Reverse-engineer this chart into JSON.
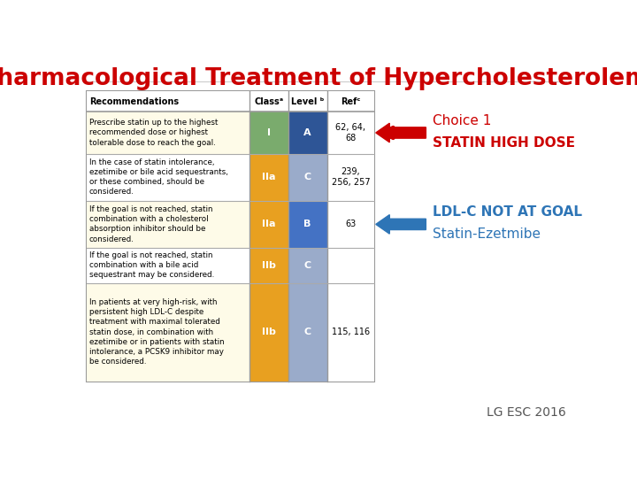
{
  "title": "Pharmacological Treatment of Hypercholesterolemia",
  "title_color": "#cc0000",
  "title_fontsize": 19,
  "bg_color": "#ffffff",
  "col_headers": [
    "Recommendations",
    "Classᵃ",
    "Level ᵇ",
    "Refᶜ"
  ],
  "row_data": [
    {
      "text": "Prescribe statin up to the highest\nrecommended dose or highest\ntolerable dose to reach the goal.",
      "class_val": "I",
      "level_val": "A",
      "ref": "62, 64,\n68",
      "class_bg": "#7aab6d",
      "level_bg": "#2e5596",
      "row_bg": "#fefbe8"
    },
    {
      "text": "In the case of statin intolerance,\nezetimibe or bile acid sequestrants,\nor these combined, should be\nconsidered.",
      "class_val": "IIa",
      "level_val": "C",
      "ref": "239,\n256, 257",
      "class_bg": "#e8a020",
      "level_bg": "#9aabca",
      "row_bg": "#ffffff"
    },
    {
      "text": "If the goal is not reached, statin\ncombination with a cholesterol\nabsorption inhibitor should be\nconsidered.",
      "class_val": "IIa",
      "level_val": "B",
      "ref": "63",
      "class_bg": "#e8a020",
      "level_bg": "#4472c4",
      "row_bg": "#fefbe8"
    },
    {
      "text": "If the goal is not reached, statin\ncombination with a bile acid\nsequestrant may be considered.",
      "class_val": "IIb",
      "level_val": "C",
      "ref": "",
      "class_bg": "#e8a020",
      "level_bg": "#9aabca",
      "row_bg": "#ffffff"
    },
    {
      "text": "In patients at very high-risk, with\npersistent high LDL-C despite\ntreatment with maximal tolerated\nstatin dose, in combination with\nezetimibe or in patients with statin\nintolerance, a PCSK9 inhibitor may\nbe considered.",
      "class_val": "IIb",
      "level_val": "C",
      "ref": "115, 116",
      "class_bg": "#e8a020",
      "level_bg": "#9aabca",
      "row_bg": "#fefbe8"
    }
  ],
  "arrow1_color": "#cc0000",
  "arrow1_label1": "Choice 1",
  "arrow1_label2": "STATIN HIGH DOSE",
  "arrow2_color": "#2e75b6",
  "arrow2_label1": "LDL-C NOT AT GOAL",
  "arrow2_label2": "Statin-Ezetmibe",
  "footer": "LG ESC 2016",
  "footer_color": "#555555",
  "footer_fontsize": 10,
  "border_color": "#999999",
  "table_line_color": "#aaaaaa"
}
